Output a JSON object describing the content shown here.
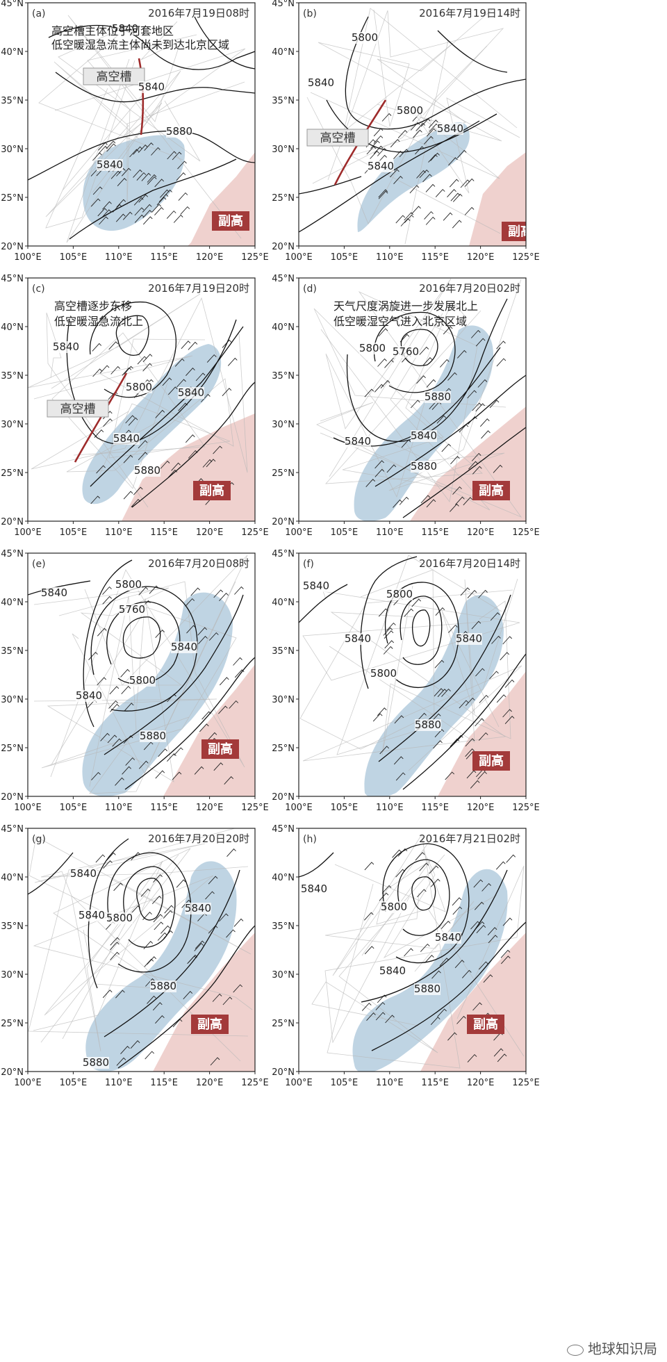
{
  "axes": {
    "x_ticks": [
      "100°E",
      "105°E",
      "110°E",
      "115°E",
      "120°E",
      "125°E"
    ],
    "y_ticks": [
      "45°N",
      "40°N",
      "35°N",
      "30°N",
      "25°N",
      "20°N"
    ]
  },
  "labels": {
    "trough": "高空槽",
    "subtropical_high": "副高"
  },
  "colors": {
    "jet_fill": "#a9c6d9",
    "high_fill": "#ecc9c6",
    "trough_line": "#9e2b2b",
    "fuga_box": "#a33a3a",
    "contour": "#111111",
    "borders": "#b8b8b8"
  },
  "panels": [
    {
      "id": "a",
      "letter": "(a)",
      "time": "2016年7月19日08时",
      "notes": [
        "高空槽主体位于河套地区",
        "低空暖湿急流主体尚未到达北京区域"
      ],
      "contour_labels": [
        "5840",
        "5840",
        "5840",
        "5880"
      ],
      "trough": true
    },
    {
      "id": "b",
      "letter": "(b)",
      "time": "2016年7月19日14时",
      "notes": [],
      "contour_labels": [
        "5800",
        "5840",
        "5800",
        "5840",
        "5840"
      ],
      "trough": true
    },
    {
      "id": "c",
      "letter": "(c)",
      "time": "2016年7月19日20时",
      "notes": [
        "高空槽逐步东移",
        "低空暖湿急流北上"
      ],
      "contour_labels": [
        "5840",
        "5800",
        "5840",
        "5840",
        "5880"
      ],
      "trough": true
    },
    {
      "id": "d",
      "letter": "(d)",
      "time": "2016年7月20日02时",
      "notes": [
        "天气尺度涡旋进一步发展北上",
        "低空暖湿空气进入北京区域"
      ],
      "contour_labels": [
        "5800",
        "5760",
        "5880",
        "5840",
        "5840",
        "5880"
      ],
      "trough": false
    },
    {
      "id": "e",
      "letter": "(e)",
      "time": "2016年7月20日08时",
      "notes": [],
      "contour_labels": [
        "5840",
        "5800",
        "5760",
        "5800",
        "5840",
        "5840",
        "5880"
      ],
      "trough": false
    },
    {
      "id": "f",
      "letter": "(f)",
      "time": "2016年7月20日14时",
      "notes": [],
      "contour_labels": [
        "5840",
        "5800",
        "5840",
        "5800",
        "5840",
        "5880"
      ],
      "trough": false
    },
    {
      "id": "g",
      "letter": "(g)",
      "time": "2016年7月20日20时",
      "notes": [],
      "contour_labels": [
        "5840",
        "5840",
        "5800",
        "5840",
        "5880",
        "5880"
      ],
      "trough": false
    },
    {
      "id": "h",
      "letter": "(h)",
      "time": "2016年7月21日02时",
      "notes": [],
      "contour_labels": [
        "5840",
        "5800",
        "5840",
        "5840",
        "5880"
      ],
      "trough": false
    }
  ],
  "watermark": "地球知识局"
}
